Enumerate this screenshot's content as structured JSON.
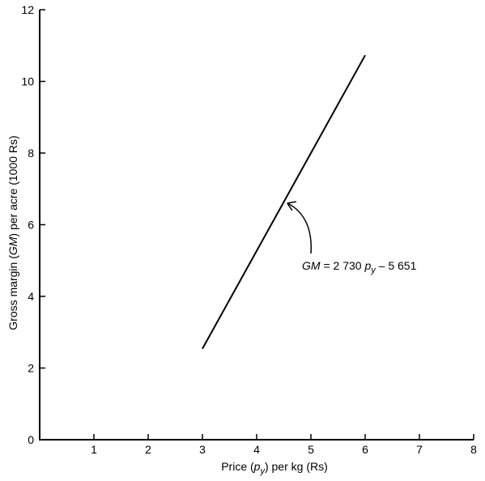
{
  "chart_data": {
    "type": "line",
    "title": "",
    "xlabel": {
      "prefix": "Price (",
      "var": "p",
      "sub": "y",
      "suffix": ") per kg (Rs)"
    },
    "ylabel": {
      "prefix": "Gross margin (",
      "var": "GM",
      "suffix": ") per acre (1000 Rs)"
    },
    "xlim": [
      0,
      8
    ],
    "ylim": [
      0,
      12
    ],
    "x_ticks": [
      1,
      2,
      3,
      4,
      5,
      6,
      7,
      8
    ],
    "y_ticks": [
      0,
      2,
      4,
      6,
      8,
      10,
      12
    ],
    "grid": false,
    "series": [
      {
        "x": [
          3,
          6
        ],
        "y": [
          2.54,
          10.73
        ],
        "color": "#000000"
      }
    ],
    "annotation": {
      "var": "GM",
      "eq": " = 2 730 ",
      "p": "p",
      "sub": "y",
      "rest": " – 5 651",
      "points_to": {
        "x": 4.55,
        "y": 6.6
      }
    }
  }
}
